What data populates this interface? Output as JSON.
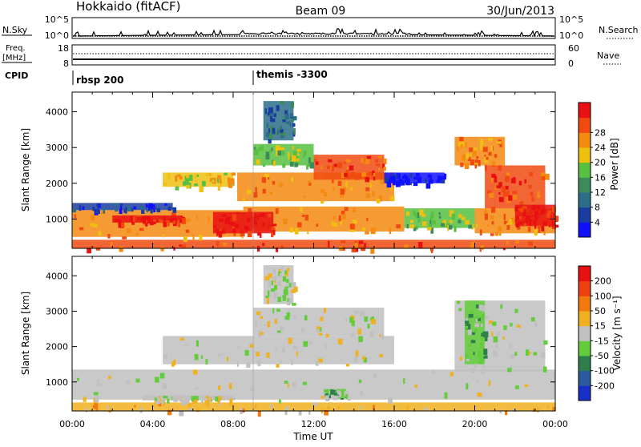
{
  "header": {
    "station": "Hokkaido (fitACF)",
    "beam": "Beam 09",
    "date": "30/Jun/2013"
  },
  "strip_panels": {
    "nsky_label": "N.Sky",
    "nsky_ticks": [
      "10^5",
      "10^0"
    ],
    "nsearch_label": "N.Search",
    "nsearch_ticks": [
      "10^5",
      "10^0"
    ],
    "freq_label": "Freq.",
    "freq_unit": "[MHz]",
    "freq_ticks": [
      "18",
      "8"
    ],
    "nave_label": "Nave",
    "nave_ticks": [
      "60",
      "0"
    ],
    "cpid_label": "CPID",
    "cpid_segments": [
      "rbsp 200",
      "themis -3300"
    ]
  },
  "chart_data": [
    {
      "type": "heatmap",
      "panel": "power",
      "xlabel": "Time UT",
      "ylabel": "Slant Range [km]",
      "x_ticks": [
        "00:00",
        "04:00",
        "08:00",
        "12:00",
        "16:00",
        "20:00",
        "00:00"
      ],
      "y_ticks": [
        1000,
        2000,
        3000,
        4000
      ],
      "xlim_hours": [
        0,
        24
      ],
      "ylim_km": [
        180,
        4550
      ],
      "colorbar": {
        "label": "Power [dB]",
        "ticks": [
          "4",
          "8",
          "12",
          "16",
          "20",
          "24",
          "28"
        ],
        "colors": [
          "#1010ff",
          "#1a3ca0",
          "#2c6e88",
          "#3d8a5a",
          "#56c040",
          "#eec010",
          "#f58a10",
          "#f04a10",
          "#e81010"
        ]
      },
      "regions": [
        {
          "t0": 0.0,
          "t1": 24.0,
          "r0": 180,
          "r1": 420,
          "level": 7
        },
        {
          "t0": 0.0,
          "t1": 8.5,
          "r0": 500,
          "r1": 1250,
          "level": 6
        },
        {
          "t0": 8.5,
          "t1": 16.5,
          "r0": 650,
          "r1": 1350,
          "level": 6
        },
        {
          "t0": 16.5,
          "t1": 20.0,
          "r0": 750,
          "r1": 1300,
          "level": 4
        },
        {
          "t0": 20.0,
          "t1": 24.0,
          "r0": 600,
          "r1": 1300,
          "level": 6
        },
        {
          "t0": 0.0,
          "t1": 5.0,
          "r0": 1250,
          "r1": 1450,
          "level": 1
        },
        {
          "t0": 4.5,
          "t1": 8.0,
          "r0": 1900,
          "r1": 2300,
          "level": 5
        },
        {
          "t0": 8.2,
          "t1": 16.0,
          "r0": 1500,
          "r1": 2300,
          "level": 6
        },
        {
          "t0": 12.0,
          "t1": 15.5,
          "r0": 2100,
          "r1": 2800,
          "level": 7
        },
        {
          "t0": 9.0,
          "t1": 12.0,
          "r0": 2500,
          "r1": 3100,
          "level": 4
        },
        {
          "t0": 9.5,
          "t1": 11.0,
          "r0": 3200,
          "r1": 4300,
          "level": 2
        },
        {
          "t0": 15.5,
          "t1": 18.5,
          "r0": 2000,
          "r1": 2300,
          "level": 0
        },
        {
          "t0": 19.0,
          "t1": 21.5,
          "r0": 2500,
          "r1": 3300,
          "level": 6
        },
        {
          "t0": 20.5,
          "t1": 23.5,
          "r0": 1300,
          "r1": 2500,
          "level": 7
        },
        {
          "t0": 22.0,
          "t1": 24.0,
          "r0": 800,
          "r1": 1400,
          "level": 8
        },
        {
          "t0": 2.0,
          "t1": 5.5,
          "r0": 900,
          "r1": 1100,
          "level": 8
        },
        {
          "t0": 7.0,
          "t1": 10.0,
          "r0": 600,
          "r1": 1200,
          "level": 8
        }
      ]
    },
    {
      "type": "heatmap",
      "panel": "velocity",
      "xlabel": "Time UT",
      "ylabel": "Slant Range [km]",
      "x_ticks": [
        "00:00",
        "04:00",
        "08:00",
        "12:00",
        "16:00",
        "20:00",
        "00:00"
      ],
      "y_ticks": [
        1000,
        2000,
        3000,
        4000
      ],
      "xlim_hours": [
        0,
        24
      ],
      "ylim_km": [
        180,
        4550
      ],
      "colorbar": {
        "label": "Velocity [m s⁻¹]",
        "ticks": [
          "200",
          "100",
          "50",
          "15",
          "-15",
          "-50",
          "-100",
          "-200"
        ],
        "colors": [
          "#1830c8",
          "#2a5aa0",
          "#2f7f4c",
          "#62cc3a",
          "#c0c0c0",
          "#f0b020",
          "#f07a10",
          "#f04010",
          "#e81010"
        ]
      },
      "regions": [
        {
          "t0": 0.0,
          "t1": 24.0,
          "r0": 180,
          "r1": 420,
          "level": 5
        },
        {
          "t0": 0.0,
          "t1": 24.0,
          "r0": 500,
          "r1": 1350,
          "level": 4
        },
        {
          "t0": 4.5,
          "t1": 16.0,
          "r0": 1500,
          "r1": 2300,
          "level": 4
        },
        {
          "t0": 9.0,
          "t1": 15.5,
          "r0": 2300,
          "r1": 3100,
          "level": 4
        },
        {
          "t0": 9.5,
          "t1": 11.0,
          "r0": 3200,
          "r1": 4300,
          "level": 4
        },
        {
          "t0": 19.0,
          "t1": 23.5,
          "r0": 1300,
          "r1": 3300,
          "level": 4
        },
        {
          "t0": 19.5,
          "t1": 20.5,
          "r0": 1500,
          "r1": 3300,
          "level": 3
        },
        {
          "t0": 12.5,
          "t1": 13.6,
          "r0": 620,
          "r1": 800,
          "level": 3
        },
        {
          "t0": 3.5,
          "t1": 8.0,
          "r0": 480,
          "r1": 620,
          "level": 4
        }
      ]
    }
  ]
}
